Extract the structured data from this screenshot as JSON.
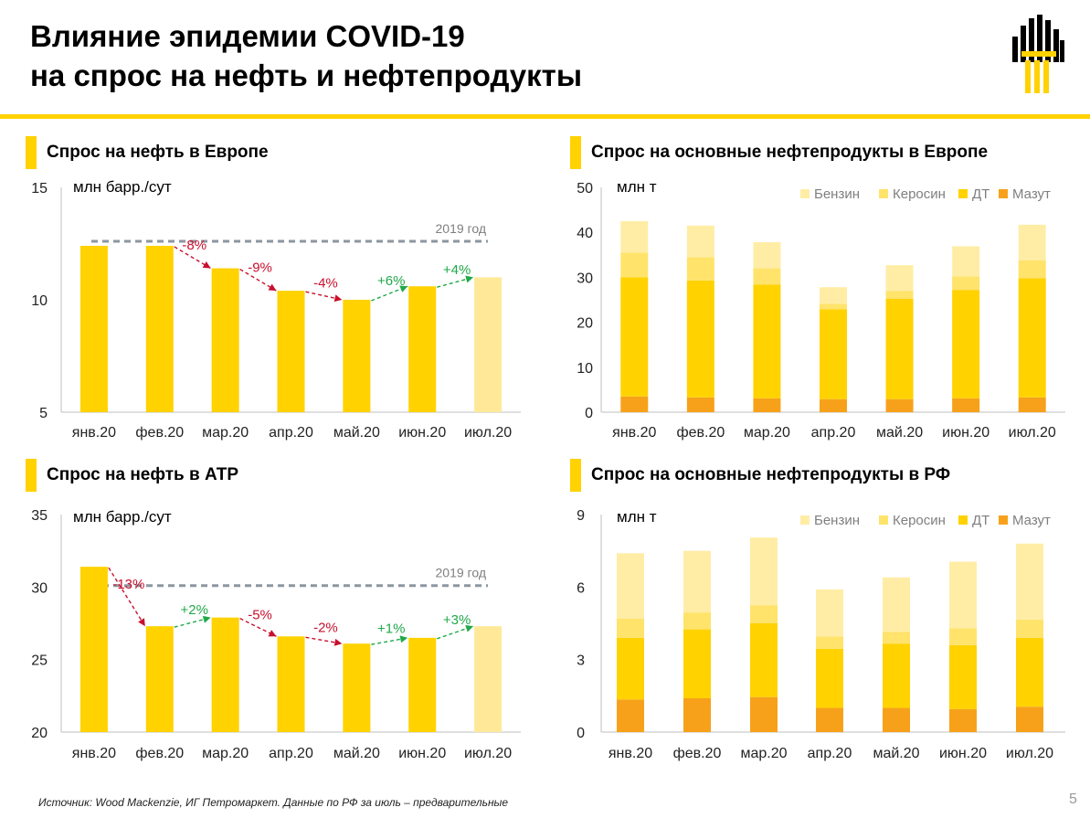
{
  "header": {
    "title_line1": "Влияние эпидемии COVID-19",
    "title_line2": "на спрос на нефть и нефтепродукты",
    "brand_color": "#FFD200"
  },
  "panels": {
    "p1": {
      "title": "Спрос на нефть в Европе"
    },
    "p2": {
      "title": "Спрос на основные нефтепродукты в Европе"
    },
    "p3": {
      "title": "Спрос на нефть в АТР"
    },
    "p4": {
      "title": "Спрос на основные нефтепродукты в РФ"
    }
  },
  "footer": {
    "source": "Источник: Wood Mackenzie, ИГ Петромаркет. Данные по РФ за июль – предварительные",
    "page_number": "5"
  },
  "colors": {
    "bar": "#FFD200",
    "bar_light": "#FFE999",
    "decline": "#C8102E",
    "growth": "#21A849",
    "ref_line": "#8C96A0",
    "gasoline": "#FFEDA6",
    "kerosene": "#FFE36B",
    "diesel": "#FFD200",
    "fuel_oil": "#F7A11A"
  },
  "chart_data": [
    {
      "id": "p1",
      "type": "bar",
      "unit_label": "млн барр./сут",
      "categories": [
        "янв.20",
        "фев.20",
        "мар.20",
        "апр.20",
        "май.20",
        "июн.20",
        "июл.20"
      ],
      "values": [
        12.4,
        12.4,
        11.4,
        10.4,
        10.0,
        10.6,
        11.0
      ],
      "highlight_last": true,
      "ylim": [
        5,
        15
      ],
      "yticks": [
        5,
        10,
        15
      ],
      "reference": {
        "value": 12.6,
        "label": "2019 год"
      },
      "changes": [
        {
          "from": 1,
          "to": 2,
          "label": "-8%",
          "dir": "down"
        },
        {
          "from": 2,
          "to": 3,
          "label": "-9%",
          "dir": "down"
        },
        {
          "from": 3,
          "to": 4,
          "label": "-4%",
          "dir": "down"
        },
        {
          "from": 4,
          "to": 5,
          "label": "+6%",
          "dir": "up"
        },
        {
          "from": 5,
          "to": 6,
          "label": "+4%",
          "dir": "up"
        }
      ]
    },
    {
      "id": "p2",
      "type": "bar",
      "stacked": true,
      "unit_label": "млн т",
      "categories": [
        "янв.20",
        "фев.20",
        "мар.20",
        "апр.20",
        "май.20",
        "июн.20",
        "июл.20"
      ],
      "ylim": [
        0,
        50
      ],
      "yticks": [
        0,
        10,
        20,
        30,
        40,
        50
      ],
      "series": [
        {
          "name": "Мазут",
          "values": [
            3.5,
            3.3,
            3.1,
            2.9,
            2.9,
            3.1,
            3.3
          ]
        },
        {
          "name": "ДТ",
          "values": [
            26.5,
            26.0,
            25.3,
            20.0,
            22.3,
            24.1,
            26.5
          ]
        },
        {
          "name": "Керосин",
          "values": [
            5.5,
            5.2,
            3.6,
            1.2,
            1.8,
            3.0,
            4.0
          ]
        },
        {
          "name": "Бензин",
          "values": [
            7.0,
            7.0,
            5.8,
            3.7,
            5.7,
            6.7,
            7.9
          ]
        }
      ],
      "legend": [
        "Бензин",
        "Керосин",
        "ДТ",
        "Мазут"
      ]
    },
    {
      "id": "p3",
      "type": "bar",
      "unit_label": "млн барр./сут",
      "categories": [
        "янв.20",
        "фев.20",
        "мар.20",
        "апр.20",
        "май.20",
        "июн.20",
        "июл.20"
      ],
      "values": [
        31.4,
        27.3,
        27.9,
        26.6,
        26.1,
        26.5,
        27.3
      ],
      "highlight_last": true,
      "ylim": [
        20,
        35
      ],
      "yticks": [
        20,
        25,
        30,
        35
      ],
      "reference": {
        "value": 30.1,
        "label": "2019 год"
      },
      "changes": [
        {
          "from": 0,
          "to": 1,
          "label": "-13%",
          "dir": "down"
        },
        {
          "from": 1,
          "to": 2,
          "label": "+2%",
          "dir": "up"
        },
        {
          "from": 2,
          "to": 3,
          "label": "-5%",
          "dir": "down"
        },
        {
          "from": 3,
          "to": 4,
          "label": "-2%",
          "dir": "down"
        },
        {
          "from": 4,
          "to": 5,
          "label": "+1%",
          "dir": "up"
        },
        {
          "from": 5,
          "to": 6,
          "label": "+3%",
          "dir": "up"
        }
      ]
    },
    {
      "id": "p4",
      "type": "bar",
      "stacked": true,
      "unit_label": "млн т",
      "categories": [
        "янв.20",
        "фев.20",
        "мар.20",
        "апр.20",
        "май.20",
        "июн.20",
        "июл.20"
      ],
      "ylim": [
        0,
        9
      ],
      "yticks": [
        0,
        3,
        6,
        9
      ],
      "series": [
        {
          "name": "Мазут",
          "values": [
            1.35,
            1.4,
            1.45,
            1.0,
            1.0,
            0.95,
            1.05
          ]
        },
        {
          "name": "ДТ",
          "values": [
            2.55,
            2.85,
            3.05,
            2.45,
            2.65,
            2.65,
            2.85
          ]
        },
        {
          "name": "Керосин",
          "values": [
            0.8,
            0.7,
            0.75,
            0.5,
            0.5,
            0.7,
            0.75
          ]
        },
        {
          "name": "Бензин",
          "values": [
            2.7,
            2.55,
            2.8,
            1.95,
            2.25,
            2.75,
            3.15
          ]
        }
      ],
      "legend": [
        "Бензин",
        "Керосин",
        "ДТ",
        "Мазут"
      ]
    }
  ]
}
